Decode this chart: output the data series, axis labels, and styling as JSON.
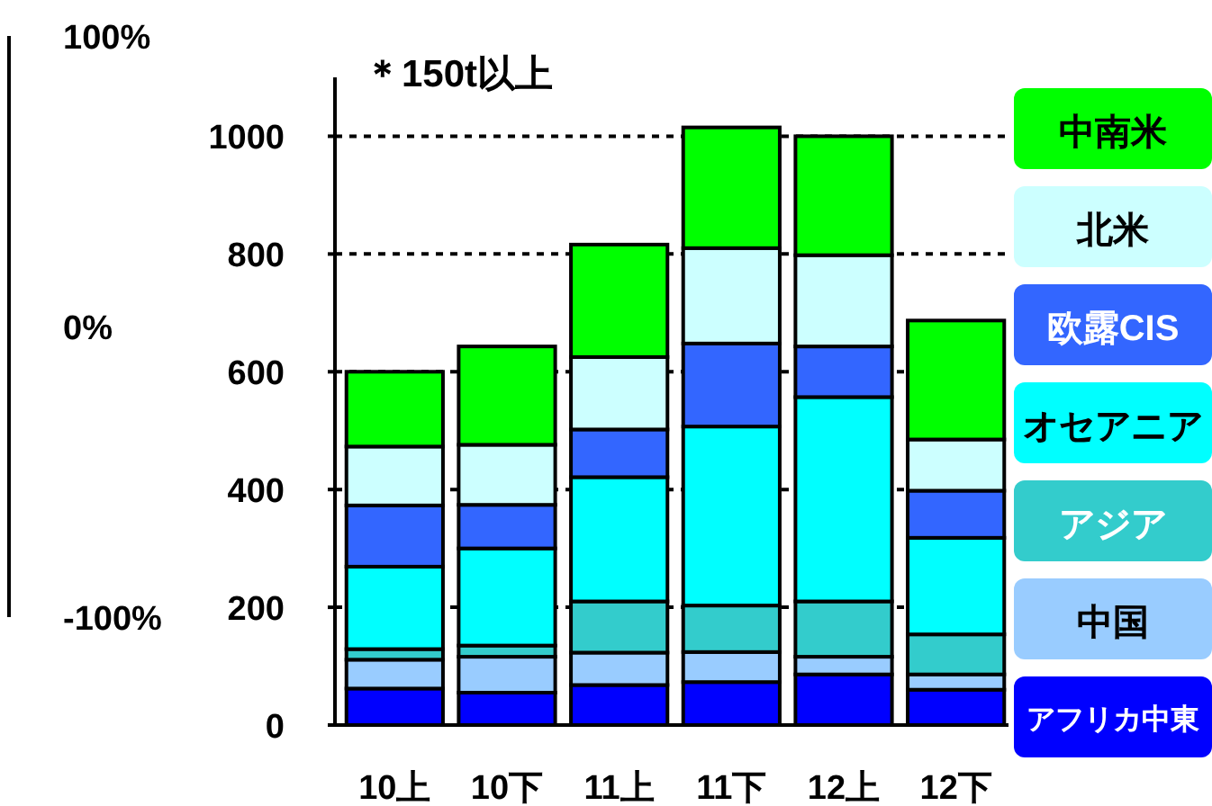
{
  "chart_data": [
    {
      "type": "other",
      "annotations": [
        "100%",
        "0%",
        "-100%"
      ]
    },
    {
      "type": "bar",
      "stacked": true,
      "subtitle": "＊150t以上",
      "categories": [
        "10上",
        "10下",
        "11上",
        "11下",
        "12上",
        "12下"
      ],
      "series": [
        {
          "name": "アフリカ中東",
          "color": "#0000ff",
          "values": [
            62,
            55,
            68,
            73,
            86,
            60
          ]
        },
        {
          "name": "中国",
          "color": "#99ccff",
          "values": [
            49,
            61,
            55,
            51,
            30,
            26
          ]
        },
        {
          "name": "アジア",
          "color": "#33cccc",
          "values": [
            18,
            19,
            87,
            79,
            94,
            68
          ]
        },
        {
          "name": "オセアニア",
          "color": "#00ffff",
          "values": [
            140,
            165,
            211,
            304,
            347,
            164
          ]
        },
        {
          "name": "欧露CIS",
          "color": "#3366ff",
          "values": [
            104,
            74,
            81,
            141,
            86,
            80
          ]
        },
        {
          "name": "北米",
          "color": "#ccffff",
          "values": [
            100,
            102,
            123,
            162,
            155,
            87
          ]
        },
        {
          "name": "中南米",
          "color": "#00ff00",
          "values": [
            127,
            167,
            191,
            205,
            202,
            202
          ]
        }
      ],
      "ylim": [
        0,
        1100
      ],
      "yticks": [
        0,
        200,
        400,
        600,
        800,
        1000
      ],
      "grid": "y",
      "legend": "right"
    }
  ]
}
